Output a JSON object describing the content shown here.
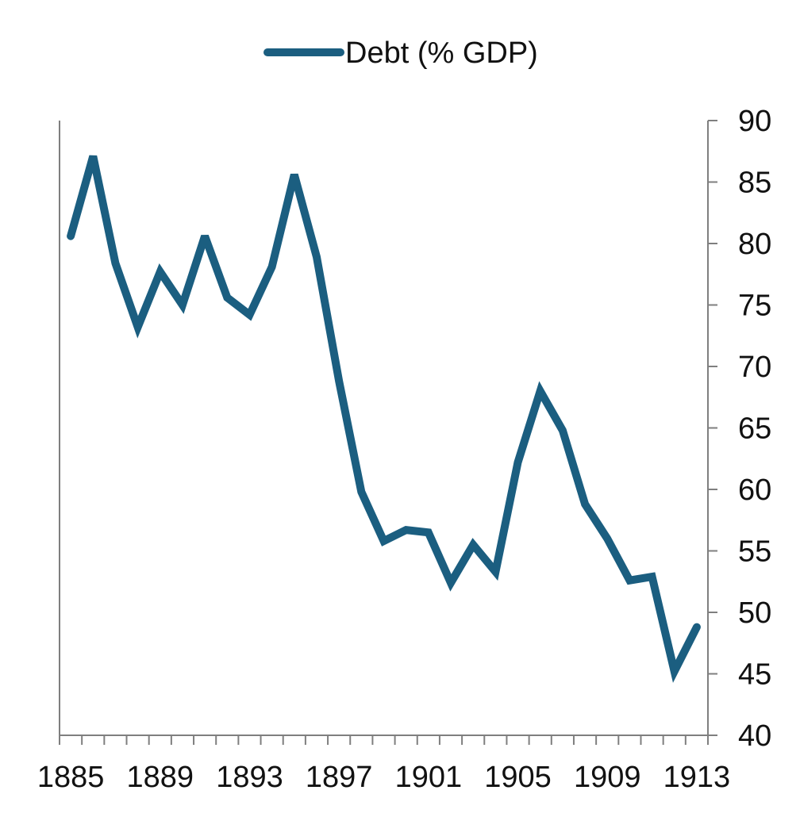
{
  "chart_data": {
    "type": "line",
    "title": "",
    "xlabel": "",
    "ylabel": "",
    "x": [
      1885,
      1886,
      1887,
      1888,
      1889,
      1890,
      1891,
      1892,
      1893,
      1894,
      1895,
      1896,
      1897,
      1898,
      1899,
      1900,
      1901,
      1902,
      1903,
      1904,
      1905,
      1906,
      1907,
      1908,
      1909,
      1910,
      1911,
      1912,
      1913
    ],
    "series": [
      {
        "name": "Debt (% GDP)",
        "color": "#1b5e80",
        "values": [
          80.6,
          87.1,
          78.4,
          73.2,
          77.7,
          75.0,
          80.6,
          75.6,
          74.2,
          78.1,
          85.6,
          78.9,
          68.8,
          59.8,
          55.8,
          56.7,
          56.5,
          52.4,
          55.5,
          53.3,
          62.2,
          68.0,
          64.8,
          58.8,
          56.0,
          52.6,
          52.9,
          45.2,
          48.8
        ]
      }
    ],
    "xlim": [
      1884.5,
      1913.5
    ],
    "ylim": [
      40,
      90
    ],
    "x_ticks": [
      "1885",
      "1889",
      "1893",
      "1897",
      "1901",
      "1905",
      "1909",
      "1913"
    ],
    "y_ticks": [
      "40",
      "45",
      "50",
      "55",
      "60",
      "65",
      "70",
      "75",
      "80",
      "85",
      "90"
    ],
    "y_axis_side": "right",
    "grid": false,
    "legend": "top-center"
  },
  "colors": {
    "line": "#1b5e80",
    "axis": "#7f7f7f",
    "text": "#111111"
  }
}
